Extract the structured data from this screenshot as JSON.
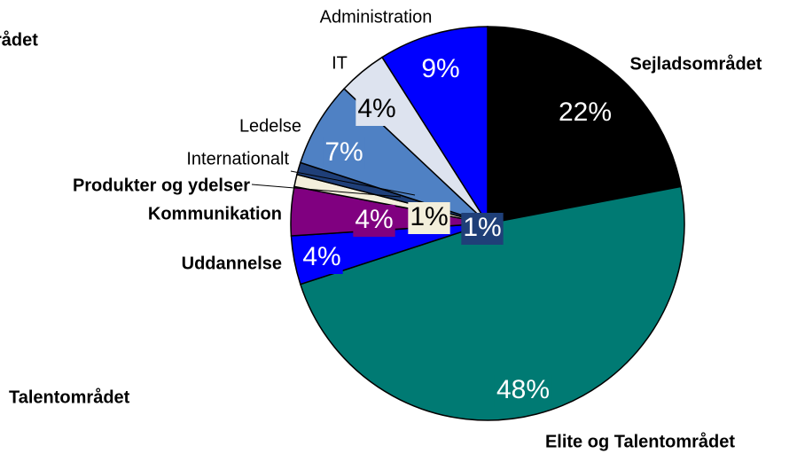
{
  "chart_data": {
    "type": "pie",
    "categories": [
      "Sejladsområdet",
      "Elite og Talentområdet",
      "Uddannelse",
      "Kommunikation",
      "Produkter og ydelser",
      "Internationalt",
      "Ledelse",
      "IT",
      "Administration"
    ],
    "values": [
      22,
      48,
      4,
      4,
      1,
      1,
      7,
      4,
      9
    ],
    "value_labels": [
      "22%",
      "48%",
      "4%",
      "4%",
      "1%",
      "1%",
      "7%",
      "4%",
      "9%"
    ],
    "colors": [
      "#000000",
      "#007a73",
      "#0000ff",
      "#800080",
      "#f3efdc",
      "#1f3f78",
      "#4f81c4",
      "#dde3ef",
      "#0000ff"
    ],
    "bold_labels": [
      true,
      true,
      true,
      true,
      true,
      false,
      false,
      false,
      false
    ],
    "annotations": [
      "rådet",
      "Talentområdet"
    ]
  }
}
